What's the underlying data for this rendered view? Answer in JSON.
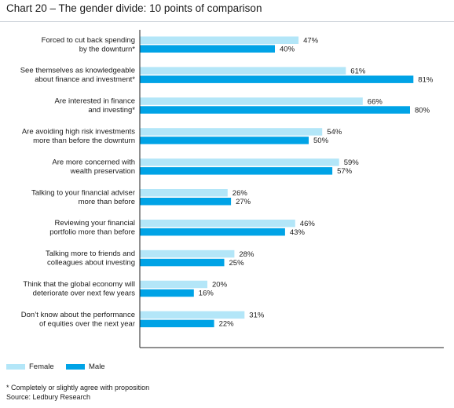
{
  "title": "Chart 20 – The gender divide: 10 points of comparison",
  "colors": {
    "female": "#b3e6f8",
    "male": "#00a3e6",
    "axis": "#222222",
    "rule": "#cfd5db"
  },
  "legend": {
    "female_label": "Female",
    "male_label": "Male"
  },
  "footnote": "* Completely or slightly agree with proposition",
  "source": "Source: Ledbury Research",
  "chart_data": {
    "type": "bar",
    "orientation": "horizontal",
    "title": "Chart 20 – The gender divide: 10 points of comparison",
    "xlabel": "",
    "ylabel": "",
    "xlim": [
      0,
      100
    ],
    "grid": false,
    "legend_placement": "bottom-left",
    "value_suffix": "%",
    "categories": [
      [
        "Forced to cut back spending",
        "by the downturn*"
      ],
      [
        "See themselves as knowledgeable",
        "about finance and investment*"
      ],
      [
        "Are interested in finance",
        "and investing*"
      ],
      [
        "Are avoiding high risk investments",
        "more than before the downturn"
      ],
      [
        "Are more concerned with",
        "wealth preservation"
      ],
      [
        "Talking to your financial adviser",
        "more than before"
      ],
      [
        "Reviewing your financial",
        "portfolio more than before"
      ],
      [
        "Talking more to friends and",
        "colleagues about investing"
      ],
      [
        "Think that the global economy will",
        "deteriorate over next few years"
      ],
      [
        "Don’t know about the performance",
        "of equities over the next year"
      ]
    ],
    "series": [
      {
        "name": "Female",
        "values": [
          47,
          61,
          66,
          54,
          59,
          26,
          46,
          28,
          20,
          31
        ]
      },
      {
        "name": "Male",
        "values": [
          40,
          81,
          80,
          50,
          57,
          27,
          43,
          25,
          16,
          22
        ]
      }
    ]
  }
}
